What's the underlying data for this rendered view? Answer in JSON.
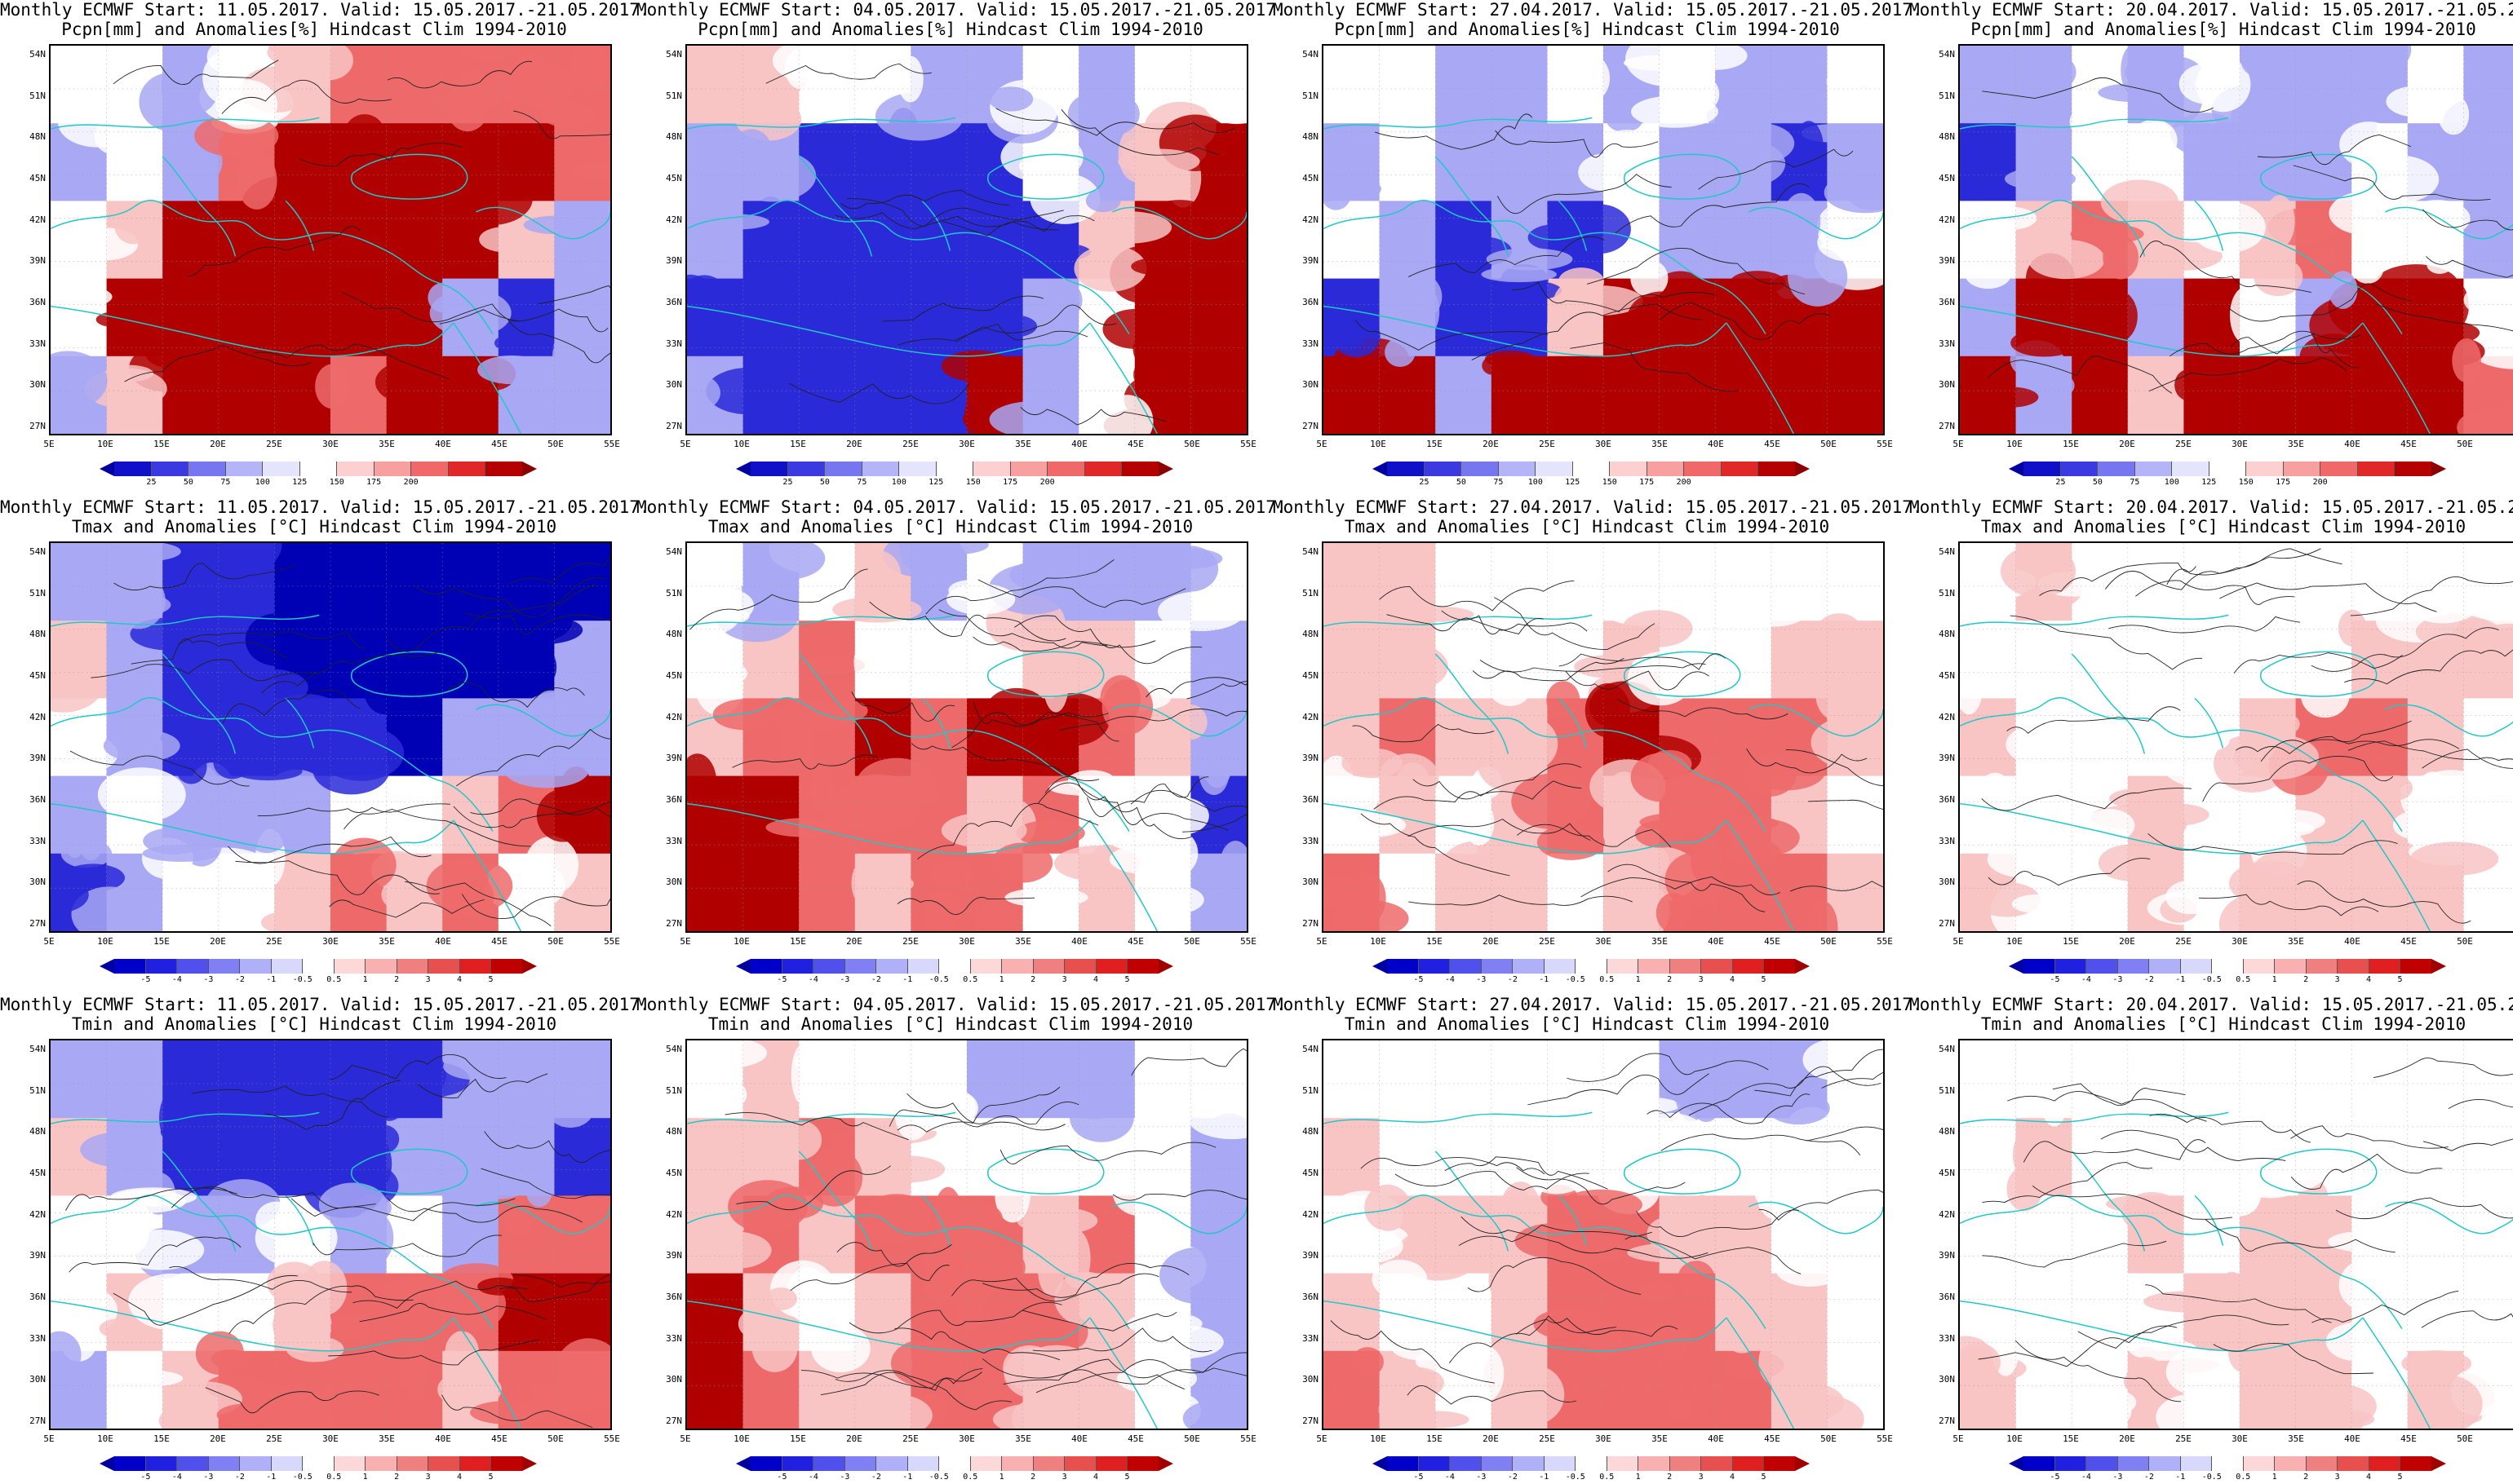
{
  "grid": {
    "columns": [
      {
        "start_line": "Monthly ECMWF Start: 11.05.2017. Valid: 15.05.2017.-21.05.2017."
      },
      {
        "start_line": "Monthly ECMWF Start: 04.05.2017. Valid: 15.05.2017.-21.05.2017."
      },
      {
        "start_line": "Monthly ECMWF Start: 27.04.2017. Valid: 15.05.2017.-21.05.2017."
      },
      {
        "start_line": "Monthly ECMWF Start: 20.04.2017. Valid: 15.05.2017.-21.05.2017."
      }
    ],
    "rows": [
      {
        "variable_line": "Pcpn[mm] and Anomalies[%] Hindcast Clim 1994-2010",
        "legend": "pcpn"
      },
      {
        "variable_line": "Tmax and Anomalies [°C] Hindcast Clim 1994-2010",
        "legend": "temp"
      },
      {
        "variable_line": "Tmin and Anomalies [°C] Hindcast Clim 1994-2010",
        "legend": "temp"
      }
    ]
  },
  "axes": {
    "lat_labels": [
      "54N",
      "51N",
      "48N",
      "45N",
      "42N",
      "39N",
      "36N",
      "33N",
      "30N",
      "27N"
    ],
    "lon_labels": [
      "5E",
      "10E",
      "15E",
      "20E",
      "25E",
      "30E",
      "35E",
      "40E",
      "45E",
      "50E",
      "55E"
    ]
  },
  "legends": {
    "pcpn": {
      "labels": [
        "25",
        "50",
        "75",
        "100",
        "125",
        "150",
        "175",
        "200"
      ],
      "colors": [
        "#1010c8",
        "#3a3ae0",
        "#7676f0",
        "#b4b4f8",
        "#e4e4fc",
        "#ffffff",
        "#fcd0d0",
        "#f8a0a0",
        "#f06868",
        "#e02828",
        "#b40000"
      ],
      "end_left": "#0000a0",
      "end_right": "#8c0000"
    },
    "temp": {
      "labels": [
        "-5",
        "-4",
        "-3",
        "-2",
        "-1",
        "-0.5",
        "0.5",
        "1",
        "2",
        "3",
        "4",
        "5"
      ],
      "colors": [
        "#0000c8",
        "#2020e0",
        "#5050ec",
        "#8080f4",
        "#b0b0f8",
        "#d8d8fc",
        "#ffffff",
        "#fcd8d8",
        "#f8b0b0",
        "#f08080",
        "#e85050",
        "#e02020",
        "#c00000"
      ],
      "end_left": "#0000a0",
      "end_right": "#a00000"
    }
  },
  "panels": [
    {
      "row": 0,
      "col": 0,
      "pattern": [
        [
          "n",
          "n",
          "b",
          "n",
          "p",
          "r",
          "r",
          "r",
          "r",
          "r"
        ],
        [
          "b",
          "n",
          "b",
          "r",
          "R",
          "R",
          "R",
          "R",
          "R",
          "r"
        ],
        [
          "n",
          "p",
          "R",
          "R",
          "R",
          "R",
          "R",
          "R",
          "p",
          "b"
        ],
        [
          "n",
          "R",
          "R",
          "R",
          "R",
          "R",
          "R",
          "b",
          "B",
          "b"
        ],
        [
          "b",
          "p",
          "R",
          "R",
          "R",
          "r",
          "R",
          "R",
          "b",
          "b"
        ]
      ]
    },
    {
      "row": 0,
      "col": 1,
      "pattern": [
        [
          "p",
          "p",
          "n",
          "n",
          "b",
          "b",
          "n",
          "b",
          "n",
          "n"
        ],
        [
          "b",
          "b",
          "B",
          "B",
          "B",
          "B",
          "n",
          "b",
          "p",
          "R"
        ],
        [
          "b",
          "B",
          "B",
          "B",
          "B",
          "B",
          "B",
          "p",
          "R",
          "R"
        ],
        [
          "B",
          "B",
          "B",
          "B",
          "B",
          "B",
          "b",
          "n",
          "R",
          "R"
        ],
        [
          "b",
          "B",
          "B",
          "B",
          "B",
          "R",
          "b",
          "n",
          "R",
          "R"
        ]
      ]
    },
    {
      "row": 0,
      "col": 2,
      "pattern": [
        [
          "n",
          "n",
          "b",
          "b",
          "n",
          "b",
          "n",
          "b",
          "b",
          "n"
        ],
        [
          "b",
          "n",
          "b",
          "b",
          "b",
          "n",
          "b",
          "b",
          "B",
          "b"
        ],
        [
          "n",
          "b",
          "B",
          "b",
          "B",
          "n",
          "b",
          "b",
          "b",
          "n"
        ],
        [
          "B",
          "b",
          "B",
          "B",
          "p",
          "R",
          "R",
          "R",
          "R",
          "R"
        ],
        [
          "R",
          "R",
          "b",
          "R",
          "R",
          "R",
          "R",
          "R",
          "R",
          "R"
        ]
      ]
    },
    {
      "row": 0,
      "col": 3,
      "pattern": [
        [
          "b",
          "b",
          "n",
          "b",
          "n",
          "b",
          "b",
          "b",
          "n",
          "b"
        ],
        [
          "B",
          "b",
          "n",
          "n",
          "b",
          "b",
          "b",
          "n",
          "b",
          "b"
        ],
        [
          "n",
          "p",
          "r",
          "p",
          "n",
          "p",
          "r",
          "n",
          "n",
          "b"
        ],
        [
          "b",
          "R",
          "R",
          "b",
          "R",
          "n",
          "b",
          "R",
          "R",
          "n"
        ],
        [
          "R",
          "b",
          "R",
          "p",
          "R",
          "R",
          "R",
          "R",
          "R",
          "r"
        ]
      ]
    },
    {
      "row": 1,
      "col": 0,
      "pattern": [
        [
          "b",
          "b",
          "B",
          "B",
          "D",
          "D",
          "D",
          "D",
          "D",
          "D"
        ],
        [
          "p",
          "b",
          "B",
          "B",
          "D",
          "D",
          "D",
          "D",
          "D",
          "b"
        ],
        [
          "n",
          "b",
          "B",
          "B",
          "B",
          "B",
          "D",
          "b",
          "b",
          "b"
        ],
        [
          "b",
          "n",
          "b",
          "b",
          "b",
          "n",
          "n",
          "p",
          "r",
          "R"
        ],
        [
          "B",
          "b",
          "n",
          "n",
          "p",
          "r",
          "p",
          "r",
          "n",
          "p"
        ]
      ]
    },
    {
      "row": 1,
      "col": 1,
      "pattern": [
        [
          "n",
          "b",
          "n",
          "p",
          "b",
          "n",
          "b",
          "b",
          "b",
          "n"
        ],
        [
          "n",
          "p",
          "r",
          "n",
          "n",
          "n",
          "p",
          "p",
          "n",
          "b"
        ],
        [
          "p",
          "r",
          "r",
          "R",
          "r",
          "R",
          "R",
          "r",
          "p",
          "b"
        ],
        [
          "R",
          "R",
          "r",
          "r",
          "r",
          "p",
          "r",
          "n",
          "n",
          "B"
        ],
        [
          "R",
          "R",
          "r",
          "p",
          "r",
          "r",
          "n",
          "p",
          "n",
          "b"
        ]
      ]
    },
    {
      "row": 1,
      "col": 2,
      "pattern": [
        [
          "p",
          "p",
          "n",
          "n",
          "n",
          "n",
          "n",
          "n",
          "n",
          "n"
        ],
        [
          "p",
          "p",
          "n",
          "n",
          "n",
          "p",
          "n",
          "n",
          "p",
          "p"
        ],
        [
          "p",
          "r",
          "p",
          "p",
          "r",
          "R",
          "r",
          "r",
          "r",
          "p"
        ],
        [
          "n",
          "p",
          "n",
          "p",
          "r",
          "p",
          "r",
          "r",
          "p",
          "n"
        ],
        [
          "r",
          "n",
          "p",
          "p",
          "n",
          "p",
          "r",
          "r",
          "r",
          "p"
        ]
      ]
    },
    {
      "row": 1,
      "col": 3,
      "pattern": [
        [
          "n",
          "p",
          "n",
          "n",
          "n",
          "n",
          "n",
          "n",
          "n",
          "n"
        ],
        [
          "n",
          "n",
          "n",
          "n",
          "n",
          "n",
          "n",
          "p",
          "p",
          "p"
        ],
        [
          "p",
          "n",
          "n",
          "n",
          "n",
          "p",
          "r",
          "r",
          "p",
          "n"
        ],
        [
          "n",
          "n",
          "n",
          "p",
          "n",
          "n",
          "p",
          "p",
          "n",
          "n"
        ],
        [
          "p",
          "n",
          "n",
          "p",
          "n",
          "p",
          "p",
          "p",
          "p",
          "n"
        ]
      ]
    },
    {
      "row": 2,
      "col": 0,
      "pattern": [
        [
          "b",
          "b",
          "B",
          "B",
          "B",
          "B",
          "B",
          "b",
          "b",
          "b"
        ],
        [
          "p",
          "b",
          "B",
          "B",
          "B",
          "B",
          "b",
          "b",
          "b",
          "B"
        ],
        [
          "n",
          "n",
          "b",
          "b",
          "n",
          "b",
          "n",
          "b",
          "r",
          "r"
        ],
        [
          "n",
          "p",
          "n",
          "n",
          "p",
          "r",
          "r",
          "r",
          "R",
          "R"
        ],
        [
          "b",
          "n",
          "p",
          "r",
          "r",
          "r",
          "r",
          "p",
          "r",
          "r"
        ]
      ]
    },
    {
      "row": 2,
      "col": 1,
      "pattern": [
        [
          "n",
          "p",
          "n",
          "n",
          "n",
          "b",
          "b",
          "b",
          "n",
          "n"
        ],
        [
          "p",
          "p",
          "r",
          "p",
          "n",
          "n",
          "n",
          "n",
          "n",
          "b"
        ],
        [
          "p",
          "r",
          "p",
          "r",
          "r",
          "r",
          "p",
          "r",
          "n",
          "b"
        ],
        [
          "R",
          "p",
          "n",
          "p",
          "r",
          "r",
          "r",
          "p",
          "n",
          "b"
        ],
        [
          "R",
          "r",
          "p",
          "p",
          "r",
          "r",
          "p",
          "p",
          "n",
          "b"
        ]
      ]
    },
    {
      "row": 2,
      "col": 2,
      "pattern": [
        [
          "n",
          "n",
          "n",
          "n",
          "n",
          "n",
          "b",
          "b",
          "b",
          "n"
        ],
        [
          "p",
          "n",
          "n",
          "n",
          "n",
          "n",
          "n",
          "n",
          "n",
          "n"
        ],
        [
          "n",
          "p",
          "p",
          "p",
          "r",
          "r",
          "p",
          "p",
          "n",
          "n"
        ],
        [
          "p",
          "n",
          "n",
          "p",
          "r",
          "r",
          "r",
          "p",
          "p",
          "n"
        ],
        [
          "r",
          "p",
          "n",
          "p",
          "r",
          "r",
          "r",
          "r",
          "p",
          "n"
        ]
      ]
    },
    {
      "row": 2,
      "col": 3,
      "pattern": [
        [
          "n",
          "n",
          "n",
          "n",
          "n",
          "n",
          "n",
          "n",
          "n",
          "n"
        ],
        [
          "n",
          "p",
          "n",
          "n",
          "n",
          "n",
          "n",
          "n",
          "n",
          "n"
        ],
        [
          "n",
          "n",
          "n",
          "p",
          "n",
          "p",
          "p",
          "n",
          "n",
          "n"
        ],
        [
          "n",
          "n",
          "n",
          "n",
          "p",
          "p",
          "p",
          "n",
          "n",
          "n"
        ],
        [
          "p",
          "n",
          "n",
          "p",
          "n",
          "p",
          "p",
          "n",
          "p",
          "n"
        ]
      ]
    }
  ],
  "palette": {
    "D": "#0000b4",
    "B": "#2a2ad8",
    "b": "#a8a8f4",
    "n": "#ffffff",
    "p": "#f8c4c4",
    "r": "#ee6a6a",
    "R": "#b00000",
    "coast": "#20c8c8",
    "contour": "#202020"
  }
}
